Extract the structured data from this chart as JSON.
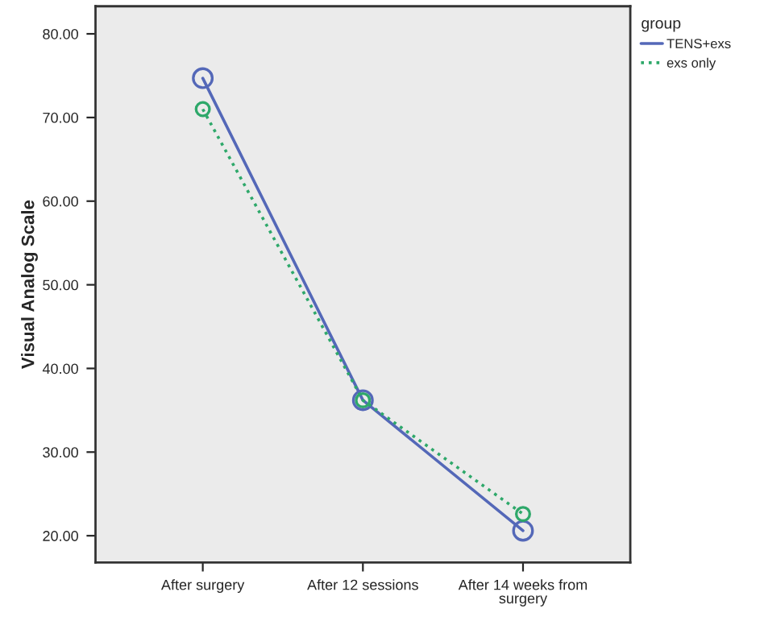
{
  "chart_data": {
    "type": "line",
    "ylabel": "Visual Analog Scale",
    "legend_title": "group",
    "categories": [
      "After surgery",
      "After 12 sessions",
      "After 14 weeks from\nsurgery"
    ],
    "series": [
      {
        "name": "TENS+exs",
        "color": "#5468b8",
        "values": [
          74.7,
          36.2,
          20.6
        ],
        "line_style": "solid"
      },
      {
        "name": "exs only",
        "color": "#2ea86a",
        "values": [
          71.0,
          36.2,
          22.6
        ],
        "line_style": "dotted"
      }
    ],
    "ylim": [
      16.8,
      83.3
    ],
    "yticks": [
      {
        "value": 20,
        "label": "20.00"
      },
      {
        "value": 30,
        "label": "30.00"
      },
      {
        "value": 40,
        "label": "40.00"
      },
      {
        "value": 50,
        "label": "50.00"
      },
      {
        "value": 60,
        "label": "60.00"
      },
      {
        "value": 70,
        "label": "70.00"
      },
      {
        "value": 80,
        "label": "80.00"
      }
    ],
    "marker": "circle",
    "grid": false,
    "legend": "top right"
  }
}
